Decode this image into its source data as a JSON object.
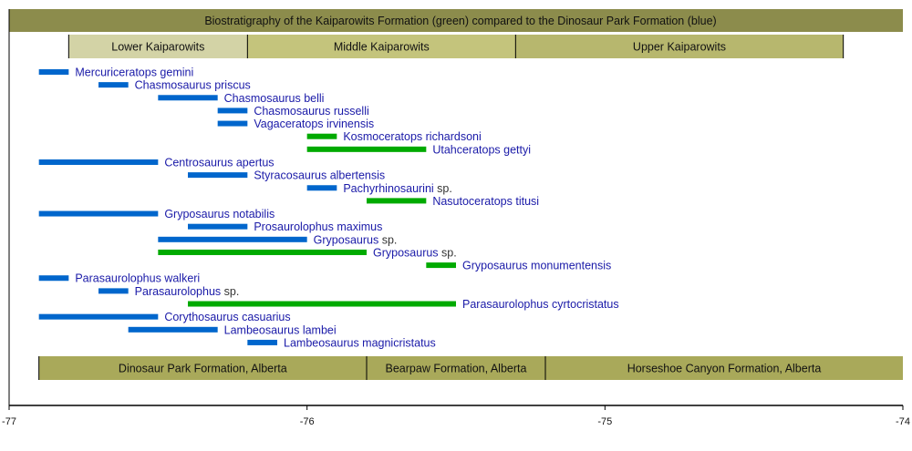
{
  "chart_data": {
    "type": "timeline",
    "title": "Biostratigraphy of the Kaiparowits Formation (green) compared to the Dinosaur Park Formation (blue)",
    "xlim": [
      -77,
      -74
    ],
    "x_ticks": [
      "-77",
      "-76",
      "-75",
      "-74"
    ],
    "colors": {
      "blue": "#0066cc",
      "green": "#00aa00",
      "label": "#1a1aa8",
      "title_bar": "#8c8c4c",
      "bottom_band": "#a9a95a"
    },
    "top_bands": [
      {
        "label": "Lower Kaiparowits",
        "start": -76.8,
        "end": -76.2,
        "color": "#d3d3a6"
      },
      {
        "label": "Middle Kaiparowits",
        "start": -76.2,
        "end": -75.3,
        "color": "#c4c47c"
      },
      {
        "label": "Upper Kaiparowits",
        "start": -75.3,
        "end": -74.2,
        "color": "#b7b76e"
      }
    ],
    "bottom_bands": [
      {
        "label": "Dinosaur Park Formation, Alberta",
        "start": -76.9,
        "end": -75.8
      },
      {
        "label": "Bearpaw Formation, Alberta",
        "start": -75.8,
        "end": -75.2
      },
      {
        "label": "Horseshoe Canyon Formation, Alberta",
        "start": -75.2,
        "end": -74.0
      }
    ],
    "bars": [
      {
        "name": "Mercuriceratops gemini",
        "suffix": "",
        "start": -76.9,
        "end": -76.8,
        "formation": "blue"
      },
      {
        "name": "Chasmosaurus priscus",
        "suffix": "",
        "start": -76.7,
        "end": -76.6,
        "formation": "blue"
      },
      {
        "name": "Chasmosaurus belli",
        "suffix": "",
        "start": -76.5,
        "end": -76.3,
        "formation": "blue"
      },
      {
        "name": "Chasmosaurus russelli",
        "suffix": "",
        "start": -76.3,
        "end": -76.2,
        "formation": "blue"
      },
      {
        "name": "Vagaceratops irvinensis",
        "suffix": "",
        "start": -76.3,
        "end": -76.2,
        "formation": "blue"
      },
      {
        "name": "Kosmoceratops richardsoni",
        "suffix": "",
        "start": -76.0,
        "end": -75.9,
        "formation": "green"
      },
      {
        "name": "Utahceratops gettyi",
        "suffix": "",
        "start": -76.0,
        "end": -75.6,
        "formation": "green"
      },
      {
        "name": "Centrosaurus apertus",
        "suffix": "",
        "start": -76.9,
        "end": -76.5,
        "formation": "blue"
      },
      {
        "name": "Styracosaurus albertensis",
        "suffix": "",
        "start": -76.4,
        "end": -76.2,
        "formation": "blue"
      },
      {
        "name": "Pachyrhinosaurini",
        "suffix": " sp.",
        "start": -76.0,
        "end": -75.9,
        "formation": "blue"
      },
      {
        "name": "Nasutoceratops titusi",
        "suffix": "",
        "start": -75.8,
        "end": -75.6,
        "formation": "green"
      },
      {
        "name": "Gryposaurus notabilis",
        "suffix": "",
        "start": -76.9,
        "end": -76.5,
        "formation": "blue"
      },
      {
        "name": "Prosaurolophus maximus",
        "suffix": "",
        "start": -76.4,
        "end": -76.2,
        "formation": "blue"
      },
      {
        "name": "Gryposaurus",
        "suffix": " sp.",
        "start": -76.5,
        "end": -76.0,
        "formation": "blue"
      },
      {
        "name": "Gryposaurus",
        "suffix": " sp.",
        "start": -76.5,
        "end": -75.8,
        "formation": "green"
      },
      {
        "name": "Gryposaurus monumentensis",
        "suffix": "",
        "start": -75.6,
        "end": -75.5,
        "formation": "green"
      },
      {
        "name": "Parasaurolophus walkeri",
        "suffix": "",
        "start": -76.9,
        "end": -76.8,
        "formation": "blue"
      },
      {
        "name": "Parasaurolophus",
        "suffix": " sp.",
        "start": -76.7,
        "end": -76.6,
        "formation": "blue"
      },
      {
        "name": "Parasaurolophus cyrtocristatus",
        "suffix": "",
        "start": -76.4,
        "end": -75.5,
        "formation": "green"
      },
      {
        "name": "Corythosaurus casuarius",
        "suffix": "",
        "start": -76.9,
        "end": -76.5,
        "formation": "blue"
      },
      {
        "name": "Lambeosaurus lambei",
        "suffix": "",
        "start": -76.6,
        "end": -76.3,
        "formation": "blue"
      },
      {
        "name": "Lambeosaurus magnicristatus",
        "suffix": "",
        "start": -76.2,
        "end": -76.1,
        "formation": "blue"
      }
    ]
  }
}
